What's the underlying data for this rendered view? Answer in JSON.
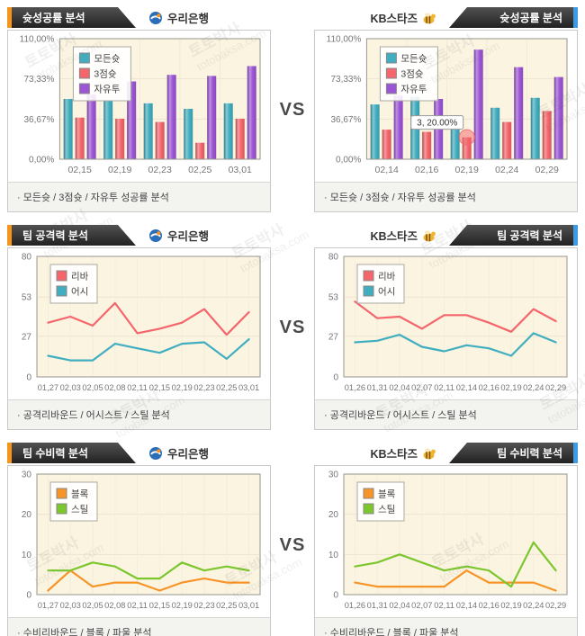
{
  "page": {
    "vs_label": "VS",
    "watermark_kr": "토토박사",
    "watermark_en": "totobaksa.com"
  },
  "teams": {
    "left": "우리은행",
    "right": "KB스타즈"
  },
  "rows": [
    {
      "title": "슛성공률 분석",
      "caption": "· 모든슛 / 3점슛 / 자유투 성공률 분석"
    },
    {
      "title": "팀 공격력 분석",
      "caption": "· 공격리바운드 / 어시스트 / 스틸 분석"
    },
    {
      "title": "팀 수비력 분석",
      "caption": "· 수비리바운드 / 블록 / 파울 분석"
    }
  ],
  "colors": {
    "accent_orange": "#F7941E",
    "accent_blue": "#3C9BE4",
    "plot_bg": "#FBF4E1",
    "plot_border": "#96968E",
    "grid": "#EDE4CF",
    "axis_text": "#777777",
    "teal": "#41AEC0",
    "red": "#F4666C",
    "purple": "#9C55D5",
    "orange": "#F79428",
    "green": "#7CC62E"
  },
  "chart_data": [
    {
      "type": "bar",
      "team": "우리은행",
      "section": "슛성공률 분석",
      "ylim": [
        0,
        110
      ],
      "y_ticks": [
        {
          "v": 110,
          "label": "110,00%"
        },
        {
          "v": 73.33,
          "label": "73,33%"
        },
        {
          "v": 36.67,
          "label": "36,67%"
        },
        {
          "v": 0,
          "label": "0,00%"
        }
      ],
      "categories": [
        "02,15",
        "02,19",
        "02,23",
        "02,25",
        "03,01"
      ],
      "series": [
        {
          "name": "모든슛",
          "color": "#41AEC0",
          "values": [
            55,
            53,
            51,
            46,
            51
          ]
        },
        {
          "name": "3점슛",
          "color": "#F4666C",
          "values": [
            38,
            37,
            34,
            15,
            37
          ]
        },
        {
          "name": "자유투",
          "color": "#9C55D5",
          "values": [
            59,
            71,
            77,
            76,
            85
          ]
        }
      ],
      "legend_position": "top-left",
      "grid": true
    },
    {
      "type": "bar",
      "team": "KB스타즈",
      "section": "슛성공률 분석",
      "ylim": [
        0,
        110
      ],
      "y_ticks": [
        {
          "v": 110,
          "label": "110,00%"
        },
        {
          "v": 73.33,
          "label": "73,33%"
        },
        {
          "v": 36.67,
          "label": "36,67%"
        },
        {
          "v": 0,
          "label": "0,00%"
        }
      ],
      "categories": [
        "02,14",
        "02,16",
        "02,19",
        "02,24",
        "02,29"
      ],
      "series": [
        {
          "name": "모든슛",
          "color": "#41AEC0",
          "values": [
            50,
            57,
            40,
            47,
            56
          ]
        },
        {
          "name": "3점슛",
          "color": "#F4666C",
          "values": [
            27,
            25,
            20,
            34,
            44
          ]
        },
        {
          "name": "자유투",
          "color": "#9C55D5",
          "values": [
            58,
            55,
            100,
            84,
            75
          ]
        }
      ],
      "highlight": {
        "category_index": 2,
        "series_index": 1,
        "label": "3, 20.00%"
      },
      "legend_position": "top-left",
      "grid": true
    },
    {
      "type": "line",
      "team": "우리은행",
      "section": "팀 공격력 분석",
      "ylim": [
        0,
        80
      ],
      "y_ticks": [
        {
          "v": 80,
          "label": "80"
        },
        {
          "v": 53,
          "label": "53"
        },
        {
          "v": 27,
          "label": "27"
        },
        {
          "v": 0,
          "label": "0"
        }
      ],
      "categories": [
        "01,27",
        "02,03",
        "02,05",
        "02,08",
        "02,11",
        "02,15",
        "02,19",
        "02,23",
        "02,25",
        "03,01"
      ],
      "series": [
        {
          "name": "리바",
          "color": "#F4666C",
          "values": [
            36,
            40,
            34,
            49,
            29,
            32,
            36,
            45,
            28,
            43
          ]
        },
        {
          "name": "어시",
          "color": "#41AEC0",
          "values": [
            14,
            11,
            11,
            22,
            19,
            16,
            22,
            23,
            12,
            25
          ]
        }
      ],
      "legend_position": "top-left",
      "grid": true
    },
    {
      "type": "line",
      "team": "KB스타즈",
      "section": "팀 공격력 분석",
      "ylim": [
        0,
        80
      ],
      "y_ticks": [
        {
          "v": 80,
          "label": "80"
        },
        {
          "v": 53,
          "label": "53"
        },
        {
          "v": 27,
          "label": "27"
        },
        {
          "v": 0,
          "label": "0"
        }
      ],
      "categories": [
        "01,26",
        "01,31",
        "02,04",
        "02,07",
        "02,11",
        "02,14",
        "02,16",
        "02,19",
        "02,24",
        "02,29"
      ],
      "series": [
        {
          "name": "리바",
          "color": "#F4666C",
          "values": [
            50,
            39,
            40,
            32,
            41,
            41,
            36,
            30,
            45,
            37
          ]
        },
        {
          "name": "어시",
          "color": "#41AEC0",
          "values": [
            23,
            24,
            28,
            20,
            17,
            21,
            19,
            14,
            29,
            23
          ]
        }
      ],
      "legend_position": "top-left",
      "grid": true
    },
    {
      "type": "line",
      "team": "우리은행",
      "section": "팀 수비력 분석",
      "ylim": [
        0,
        30
      ],
      "y_ticks": [
        {
          "v": 30,
          "label": "30"
        },
        {
          "v": 20,
          "label": "20"
        },
        {
          "v": 10,
          "label": "10"
        },
        {
          "v": 0,
          "label": "0"
        }
      ],
      "categories": [
        "01,27",
        "02,03",
        "02,05",
        "02,08",
        "02,11",
        "02,15",
        "02,19",
        "02,23",
        "02,25",
        "03,01"
      ],
      "series": [
        {
          "name": "블록",
          "color": "#F79428",
          "values": [
            1,
            6,
            2,
            3,
            3,
            1,
            3,
            4,
            3,
            3
          ]
        },
        {
          "name": "스틸",
          "color": "#7CC62E",
          "values": [
            6,
            6,
            8,
            7,
            4,
            4,
            8,
            6,
            7,
            6
          ]
        }
      ],
      "legend_position": "top-left",
      "grid": true
    },
    {
      "type": "line",
      "team": "KB스타즈",
      "section": "팀 수비력 분석",
      "ylim": [
        0,
        30
      ],
      "y_ticks": [
        {
          "v": 30,
          "label": "30"
        },
        {
          "v": 20,
          "label": "20"
        },
        {
          "v": 10,
          "label": "10"
        },
        {
          "v": 0,
          "label": "0"
        }
      ],
      "categories": [
        "01,26",
        "01,31",
        "02,04",
        "02,07",
        "02,11",
        "02,14",
        "02,16",
        "02,19",
        "02,24",
        "02,29"
      ],
      "series": [
        {
          "name": "블록",
          "color": "#F79428",
          "values": [
            3,
            2,
            2,
            2,
            2,
            6,
            3,
            3,
            3,
            1
          ]
        },
        {
          "name": "스틸",
          "color": "#7CC62E",
          "values": [
            7,
            8,
            10,
            8,
            6,
            7,
            6,
            2,
            13,
            6
          ]
        }
      ],
      "legend_position": "top-left",
      "grid": true
    }
  ]
}
